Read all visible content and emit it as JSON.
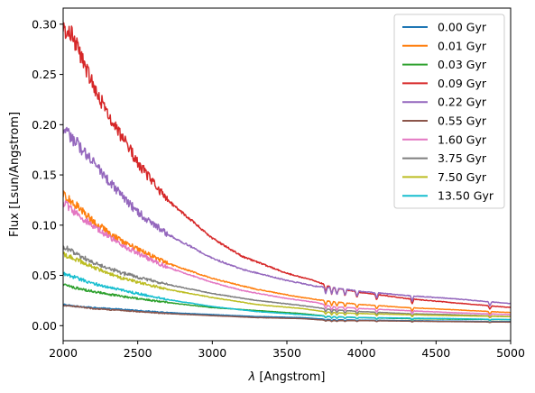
{
  "chart_data": {
    "type": "line",
    "xlabel_symbol": "λ",
    "xlabel_unit": " [Angstrom]",
    "ylabel": "Flux [Lsun/Angstrom]",
    "xlim": [
      2000,
      5000
    ],
    "ylim": [
      -0.015,
      0.316
    ],
    "xticks": [
      2000,
      2500,
      3000,
      3500,
      4000,
      4500,
      5000
    ],
    "yticks": [
      0.0,
      0.05,
      0.1,
      0.15,
      0.2,
      0.25,
      0.3
    ],
    "ytick_labels": [
      "0.00",
      "0.05",
      "0.10",
      "0.15",
      "0.20",
      "0.25",
      "0.30"
    ],
    "grid": false,
    "legend_position": "top-right",
    "series": [
      {
        "name": "0.00 Gyr",
        "color": "#1f77b4",
        "x": [
          2000,
          2100,
          2200,
          2400,
          2700,
          3000,
          3300,
          3600,
          3800,
          4000,
          4300,
          4600,
          5000
        ],
        "y": [
          0.021,
          0.019,
          0.018,
          0.016,
          0.013,
          0.011,
          0.009,
          0.008,
          0.006,
          0.0055,
          0.005,
          0.0045,
          0.004
        ]
      },
      {
        "name": "0.01 Gyr",
        "color": "#ff7f0e",
        "x": [
          2000,
          2100,
          2200,
          2400,
          2700,
          3000,
          3300,
          3600,
          3800,
          4000,
          4300,
          4600,
          5000
        ],
        "y": [
          0.131,
          0.118,
          0.104,
          0.083,
          0.062,
          0.047,
          0.036,
          0.028,
          0.024,
          0.021,
          0.018,
          0.016,
          0.013
        ]
      },
      {
        "name": "0.03 Gyr",
        "color": "#2ca02c",
        "x": [
          2000,
          2100,
          2200,
          2400,
          2700,
          3000,
          3300,
          3600,
          3800,
          4000,
          4300,
          4600,
          5000
        ],
        "y": [
          0.041,
          0.037,
          0.034,
          0.029,
          0.023,
          0.018,
          0.015,
          0.012,
          0.009,
          0.008,
          0.007,
          0.0065,
          0.006
        ]
      },
      {
        "name": "0.09 Gyr",
        "color": "#d62728",
        "x": [
          2000,
          2050,
          2100,
          2200,
          2300,
          2400,
          2500,
          2700,
          3000,
          3200,
          3500,
          3700,
          3800,
          4000,
          4300,
          4600,
          5000
        ],
        "y": [
          0.297,
          0.29,
          0.275,
          0.24,
          0.211,
          0.186,
          0.162,
          0.125,
          0.087,
          0.069,
          0.052,
          0.044,
          0.038,
          0.033,
          0.027,
          0.023,
          0.018
        ]
      },
      {
        "name": "0.22 Gyr",
        "color": "#9467bd",
        "x": [
          2000,
          2100,
          2200,
          2300,
          2400,
          2500,
          2700,
          3000,
          3200,
          3500,
          3700,
          3800,
          4000,
          4300,
          4600,
          5000
        ],
        "y": [
          0.197,
          0.18,
          0.163,
          0.145,
          0.128,
          0.113,
          0.091,
          0.067,
          0.056,
          0.045,
          0.039,
          0.038,
          0.034,
          0.03,
          0.027,
          0.022
        ]
      },
      {
        "name": "0.55 Gyr",
        "color": "#8c564b",
        "x": [
          2000,
          2100,
          2200,
          2400,
          2700,
          3000,
          3300,
          3600,
          3800,
          4000,
          4300,
          4600,
          5000
        ],
        "y": [
          0.02,
          0.019,
          0.017,
          0.015,
          0.012,
          0.01,
          0.008,
          0.007,
          0.005,
          0.005,
          0.0045,
          0.004,
          0.0035
        ]
      },
      {
        "name": "1.60 Gyr",
        "color": "#e377c2",
        "x": [
          2000,
          2100,
          2200,
          2300,
          2400,
          2500,
          2700,
          3000,
          3200,
          3500,
          3700,
          3800,
          4000,
          4300,
          4600,
          5000
        ],
        "y": [
          0.123,
          0.11,
          0.099,
          0.089,
          0.08,
          0.072,
          0.058,
          0.043,
          0.035,
          0.027,
          0.023,
          0.019,
          0.017,
          0.015,
          0.013,
          0.011
        ]
      },
      {
        "name": "3.75 Gyr",
        "color": "#7f7f7f",
        "x": [
          2000,
          2100,
          2200,
          2400,
          2700,
          3000,
          3300,
          3600,
          3800,
          4000,
          4300,
          4600,
          5000
        ],
        "y": [
          0.079,
          0.07,
          0.063,
          0.052,
          0.041,
          0.032,
          0.025,
          0.02,
          0.016,
          0.014,
          0.012,
          0.011,
          0.009
        ]
      },
      {
        "name": "7.50 Gyr",
        "color": "#bcbd22",
        "x": [
          2000,
          2100,
          2200,
          2400,
          2700,
          3000,
          3300,
          3600,
          3800,
          4000,
          4300,
          4600,
          5000
        ],
        "y": [
          0.071,
          0.065,
          0.058,
          0.047,
          0.036,
          0.028,
          0.021,
          0.017,
          0.013,
          0.012,
          0.011,
          0.01,
          0.009
        ]
      },
      {
        "name": "13.50 Gyr",
        "color": "#17becf",
        "x": [
          2000,
          2100,
          2200,
          2400,
          2700,
          3000,
          3300,
          3600,
          3800,
          4000,
          4300,
          4600,
          5000
        ],
        "y": [
          0.052,
          0.047,
          0.042,
          0.035,
          0.026,
          0.019,
          0.014,
          0.011,
          0.009,
          0.008,
          0.0075,
          0.007,
          0.006
        ]
      }
    ]
  }
}
